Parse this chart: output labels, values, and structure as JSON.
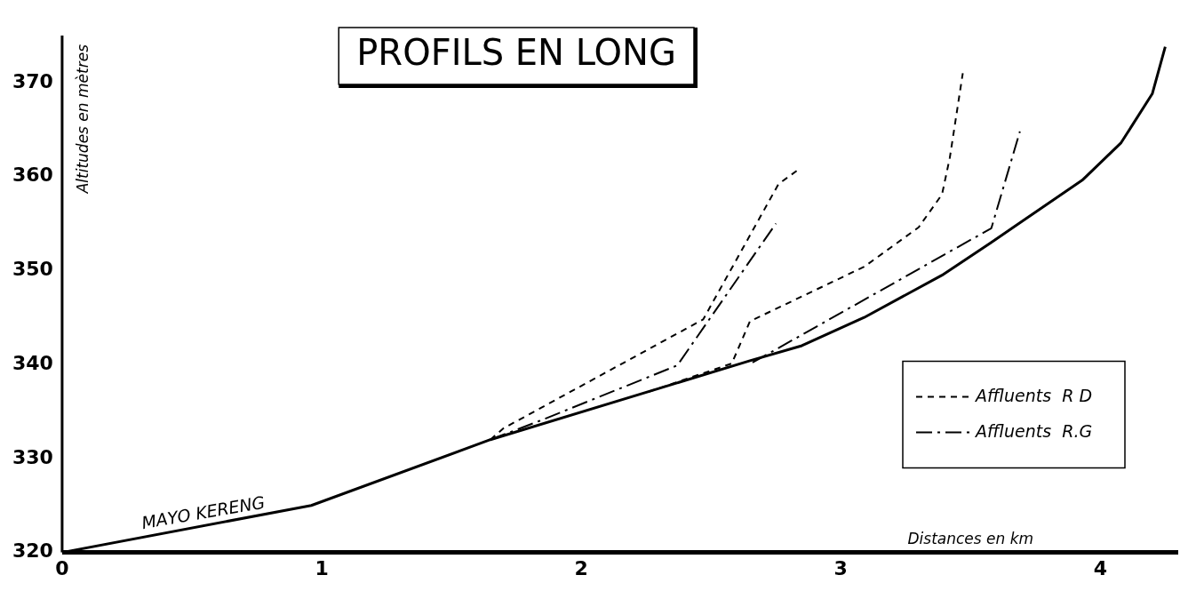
{
  "chart_data": {
    "type": "line",
    "title": "PROFILS EN LONG",
    "xlabel": "Distances en km",
    "ylabel": "Altitudes en mètres",
    "xlim": [
      0,
      4.3
    ],
    "xticks": [
      0,
      1,
      2,
      3,
      4
    ],
    "ylim": [
      320,
      375
    ],
    "yticks": [
      320,
      330,
      340,
      350,
      360,
      370
    ],
    "grid": false,
    "legend": "bottom right",
    "marker": "none",
    "annotations": [
      {
        "text": "MAYO KERENG",
        "x": 0.55,
        "y": 323.2
      }
    ],
    "series": [
      {
        "color": "#000000",
        "line_style": "solid",
        "x": [
          0,
          0.96,
          1.65,
          2.65,
          2.85,
          3.09,
          3.39,
          3.58,
          3.93,
          4.08,
          4.2,
          4.25
        ],
        "values": [
          320,
          325,
          332,
          340.4,
          342,
          345,
          349.5,
          353,
          359.6,
          363.6,
          368.8,
          373.8
        ]
      },
      {
        "name": "Affluents  R D",
        "color": "#000000",
        "line_style": "dashed",
        "x": [
          1.65,
          1.7,
          2.47,
          2.76,
          2.84
        ],
        "values": [
          332,
          333.2,
          344.8,
          359.2,
          360.8
        ]
      },
      {
        "color": "#000000",
        "line_style": "dashed",
        "x": [
          2.26,
          2.58,
          2.65,
          3.09,
          3.3,
          3.39,
          3.42,
          3.47
        ],
        "values": [
          337.1,
          340.1,
          344.6,
          350.4,
          354.6,
          358.1,
          362,
          371
        ]
      },
      {
        "name": "Affluents  R.G",
        "color": "#000000",
        "line_style": "dashdot",
        "x": [
          1.65,
          1.84,
          2.37,
          2.75
        ],
        "values": [
          332,
          334,
          339.9,
          355
        ]
      },
      {
        "color": "#000000",
        "line_style": "dashdot",
        "x": [
          2.66,
          3.58,
          3.69
        ],
        "values": [
          340.2,
          354.5,
          364.8
        ]
      }
    ]
  }
}
